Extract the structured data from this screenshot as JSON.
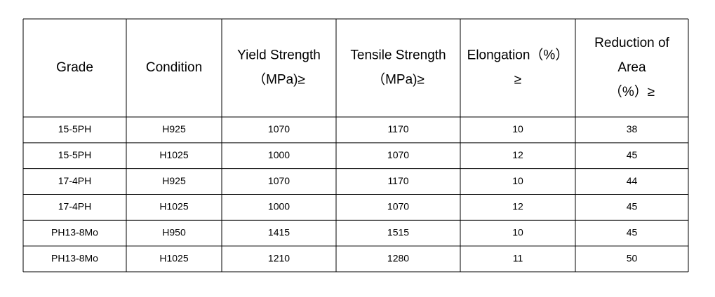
{
  "table": {
    "headers": [
      [
        "Grade"
      ],
      [
        "Condition"
      ],
      [
        "Yield Strength",
        "（MPa)≥"
      ],
      [
        "Tensile Strength",
        "（MPa)≥"
      ],
      [
        "Elongation（%）",
        "≥"
      ],
      [
        "Reduction of",
        "Area",
        "（%）≥"
      ]
    ],
    "rows": [
      [
        "15-5PH",
        "H925",
        "1070",
        "1170",
        "10",
        "38"
      ],
      [
        "15-5PH",
        "H1025",
        "1000",
        "1070",
        "12",
        "45"
      ],
      [
        "17-4PH",
        "H925",
        "1070",
        "1170",
        "10",
        "44"
      ],
      [
        "17-4PH",
        "H1025",
        "1000",
        "1070",
        "12",
        "45"
      ],
      [
        "PH13-8Mo",
        "H950",
        "1415",
        "1515",
        "10",
        "45"
      ],
      [
        "PH13-8Mo",
        "H1025",
        "1210",
        "1280",
        "11",
        "50"
      ]
    ]
  }
}
